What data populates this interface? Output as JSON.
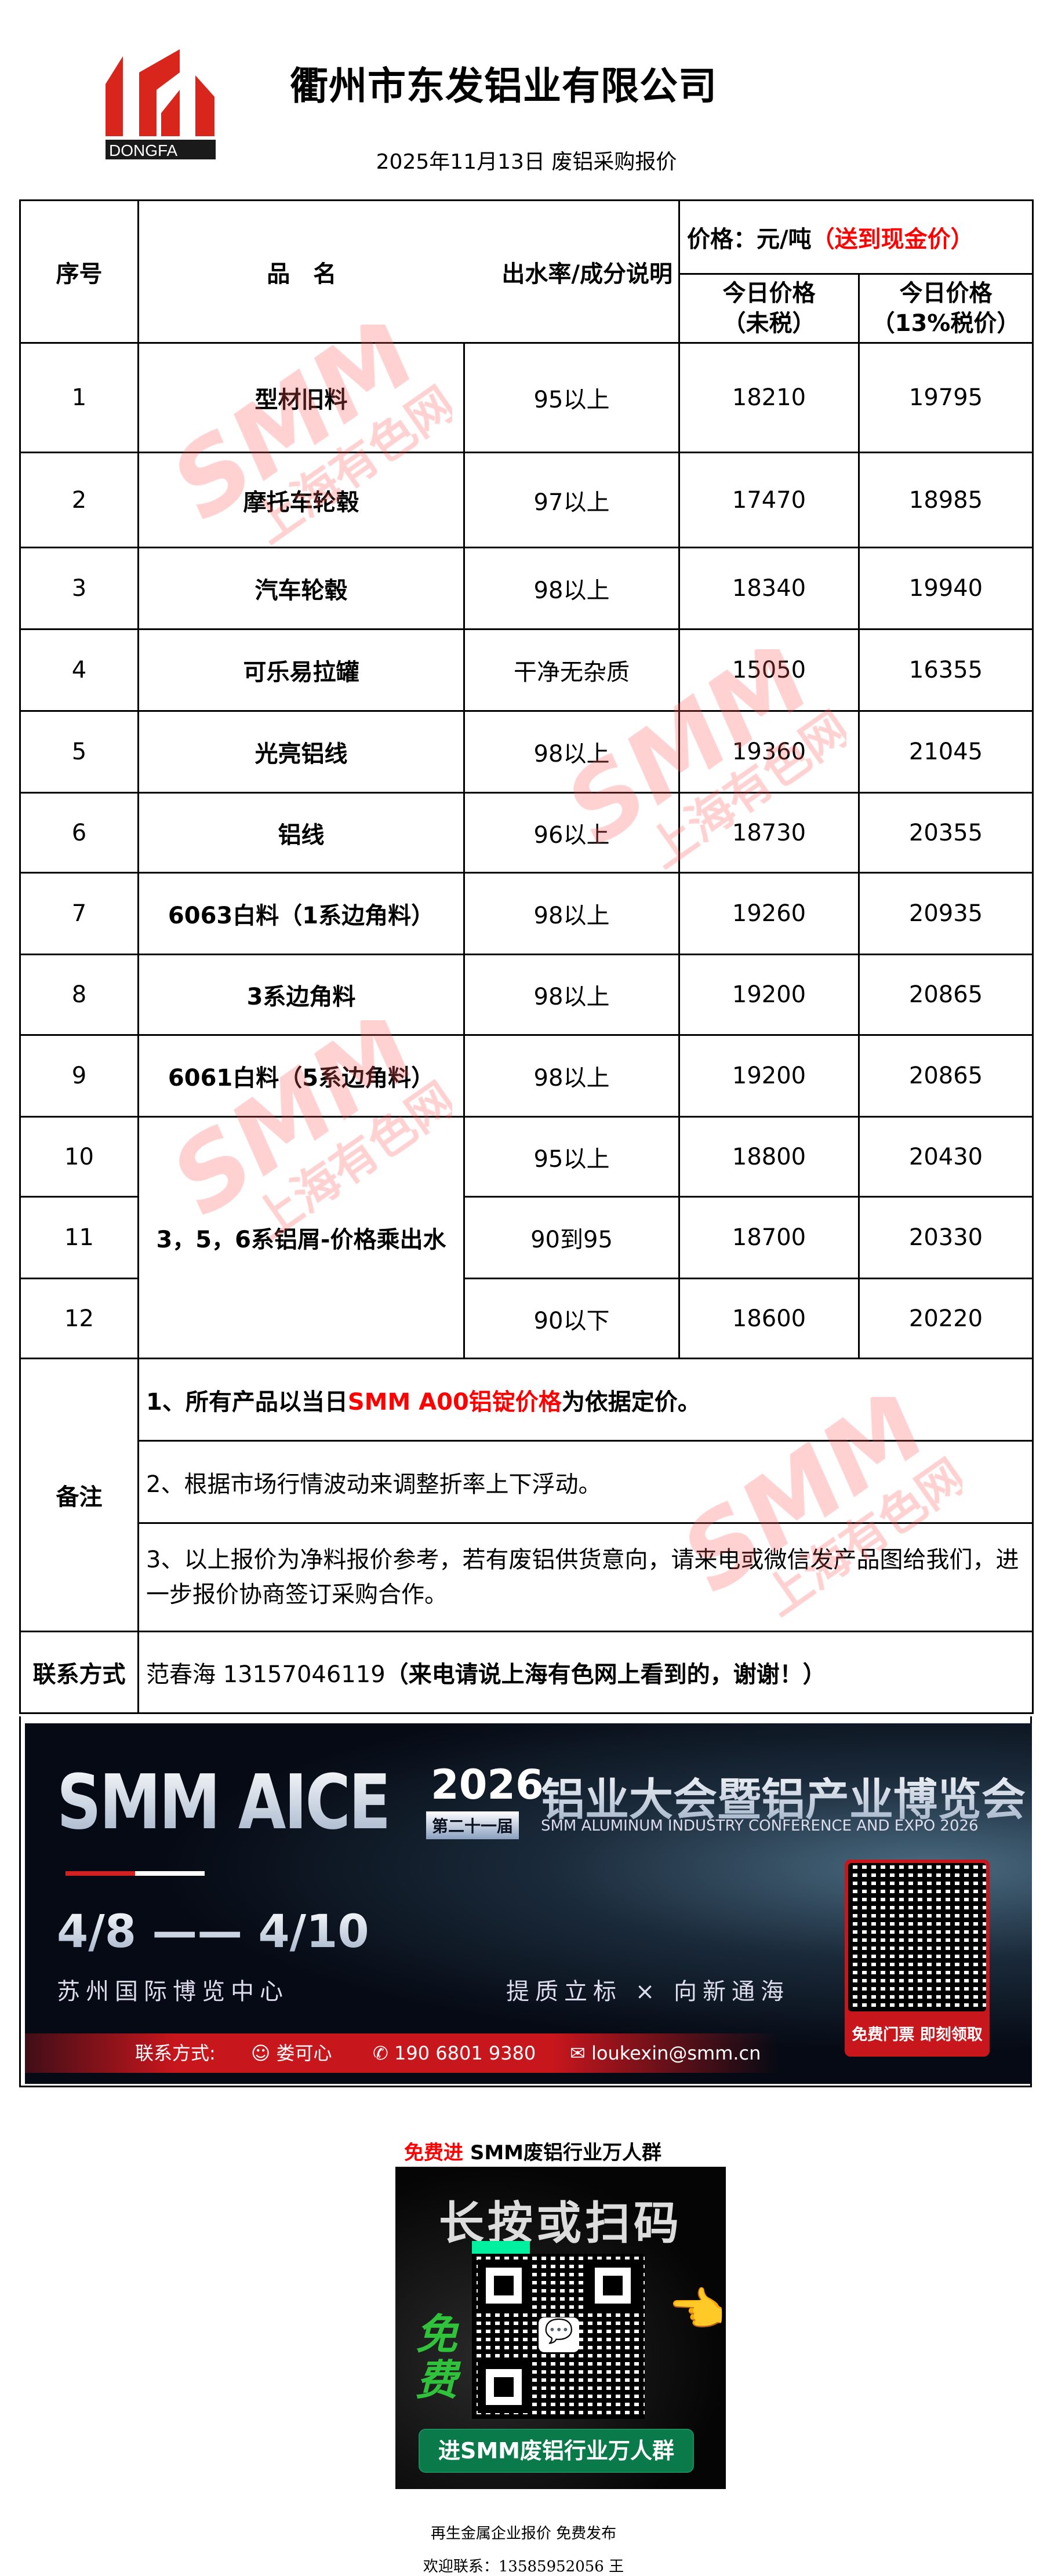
{
  "header": {
    "company": "衢州市东发铝业有限公司",
    "logo_text": "DONGFA",
    "date_title": "2025年11月13日 废铝采购报价"
  },
  "table": {
    "headers": {
      "seq": "序号",
      "name": "品　名",
      "rate": "出水率/成分说明",
      "price_unit": "价格：元/吨",
      "price_note": "（送到现金价）",
      "price_no_tax": "今日价格（未税）",
      "price_tax": "今日价格（13%税价）"
    },
    "rows": [
      {
        "seq": "1",
        "name": "型材旧料",
        "rate": "95以上",
        "p1": "18210",
        "p2": "19795"
      },
      {
        "seq": "2",
        "name": "摩托车轮毂",
        "rate": "97以上",
        "p1": "17470",
        "p2": "18985"
      },
      {
        "seq": "3",
        "name": "汽车轮毂",
        "rate": "98以上",
        "p1": "18340",
        "p2": "19940"
      },
      {
        "seq": "4",
        "name": "可乐易拉罐",
        "rate": "干净无杂质",
        "p1": "15050",
        "p2": "16355"
      },
      {
        "seq": "5",
        "name": "光亮铝线",
        "rate": "98以上",
        "p1": "19360",
        "p2": "21045"
      },
      {
        "seq": "6",
        "name": "铝线",
        "rate": "96以上",
        "p1": "18730",
        "p2": "20355"
      },
      {
        "seq": "7",
        "name": "6063白料（1系边角料）",
        "rate": "98以上",
        "p1": "19260",
        "p2": "20935"
      },
      {
        "seq": "8",
        "name": "3系边角料",
        "rate": "98以上",
        "p1": "19200",
        "p2": "20865"
      },
      {
        "seq": "9",
        "name": "6061白料（5系边角料）",
        "rate": "98以上",
        "p1": "19200",
        "p2": "20865"
      },
      {
        "seq": "10",
        "name": "3，5，6系铝屑-价格乘出水",
        "rate": "95以上",
        "p1": "18800",
        "p2": "20430"
      },
      {
        "seq": "11",
        "rate": "90到95",
        "p1": "18700",
        "p2": "20330"
      },
      {
        "seq": "12",
        "rate": "90以下",
        "p1": "18600",
        "p2": "20220"
      }
    ],
    "remarks_label": "备注",
    "remark1_a": "1、所有产品以当日",
    "remark1_red": "SMM A00铝锭价格",
    "remark1_b": "为依据定价。",
    "remark2": "2、根据市场行情波动来调整折率上下浮动。",
    "remark3": "3、以上报价为净料报价参考，若有废铝供货意向，请来电或微信发产品图给我们，进一步报价协商签订采购合作。",
    "contact_label": "联系方式",
    "contact_person": "范春海 13157046119",
    "contact_note": "（来电请说上海有色网上看到的，谢谢！）"
  },
  "watermark": {
    "brand": "SMM",
    "cn": "上海有色网"
  },
  "banner": {
    "brand": "SMM AICE",
    "year": "2026",
    "edition": "第二十一届",
    "title_cn": "铝业大会暨铝产业博览会",
    "title_en": "SMM ALUMINUM INDUSTRY CONFERENCE AND EXPO 2026",
    "dates": "4/8 —— 4/10",
    "venue": "苏州国际博览中心",
    "slogan": "提质立标 × 向新通海",
    "contact_label": "联系方式:",
    "contact_name": "娄可心",
    "contact_phone": "190 6801 9380",
    "contact_email": "loukexin@smm.cn",
    "qr_caption": "免费门票 即刻领取",
    "colors": {
      "accent": "#c8161d"
    }
  },
  "group": {
    "heading_red": "免费进",
    "heading": " SMM废铝行业万人群",
    "card_title": "长按或扫码",
    "card_badge": "免费",
    "card_button": "进SMM废铝行业万人群"
  },
  "footer": {
    "line1": "再生金属企业报价  免费发布",
    "line2": "欢迎联系：13585952056  王"
  }
}
